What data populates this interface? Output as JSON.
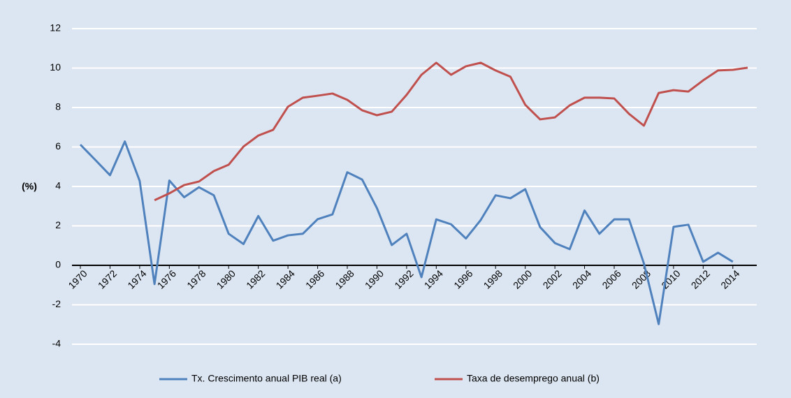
{
  "chart_data": {
    "type": "line",
    "y_label": "(%)",
    "x": [
      1970,
      1971,
      1972,
      1973,
      1974,
      1975,
      1976,
      1977,
      1978,
      1979,
      1980,
      1981,
      1982,
      1983,
      1984,
      1985,
      1986,
      1987,
      1988,
      1989,
      1990,
      1991,
      1992,
      1993,
      1994,
      1995,
      1996,
      1997,
      1998,
      1999,
      2000,
      2001,
      2002,
      2003,
      2004,
      2005,
      2006,
      2007,
      2008,
      2009,
      2010,
      2011,
      2012,
      2013,
      2014,
      2015
    ],
    "xlim": [
      1970,
      2015
    ],
    "xticks": [
      1970,
      1972,
      1974,
      1976,
      1978,
      1980,
      1982,
      1984,
      1986,
      1988,
      1990,
      1992,
      1994,
      1996,
      1998,
      2000,
      2002,
      2004,
      2006,
      2008,
      2010,
      2012,
      2014
    ],
    "ylim": [
      -4,
      12
    ],
    "yticks": [
      -4,
      -2,
      0,
      2,
      4,
      6,
      8,
      10,
      12
    ],
    "grid": true,
    "legend": "bottom",
    "series": [
      {
        "name": "Tx. Crescimento anual PIB real (a)",
        "color": "#4f81bd",
        "values": [
          6.12,
          5.35,
          4.57,
          6.28,
          4.28,
          -0.95,
          4.3,
          3.45,
          3.96,
          3.55,
          1.6,
          1.08,
          2.5,
          1.25,
          1.52,
          1.6,
          2.34,
          2.58,
          4.72,
          4.35,
          2.9,
          1.03,
          1.6,
          -0.6,
          2.33,
          2.08,
          1.36,
          2.3,
          3.55,
          3.4,
          3.86,
          1.94,
          1.13,
          0.82,
          2.78,
          1.6,
          2.33,
          2.33,
          0.1,
          -2.98,
          1.95,
          2.06,
          0.18,
          0.64,
          0.18,
          null
        ]
      },
      {
        "name": "Taxa de desemprego anual (b)",
        "color": "#c0504d",
        "values": [
          null,
          null,
          null,
          null,
          null,
          3.3,
          3.65,
          4.07,
          4.25,
          4.78,
          5.1,
          6.02,
          6.58,
          6.87,
          8.04,
          8.5,
          8.6,
          8.71,
          8.39,
          7.86,
          7.61,
          7.79,
          8.64,
          9.66,
          10.27,
          9.66,
          10.09,
          10.27,
          9.88,
          9.56,
          8.14,
          7.4,
          7.5,
          8.11,
          8.5,
          8.5,
          8.46,
          7.68,
          7.08,
          8.74,
          8.88,
          8.81,
          9.38,
          9.88,
          9.91,
          10.02
        ]
      }
    ]
  }
}
